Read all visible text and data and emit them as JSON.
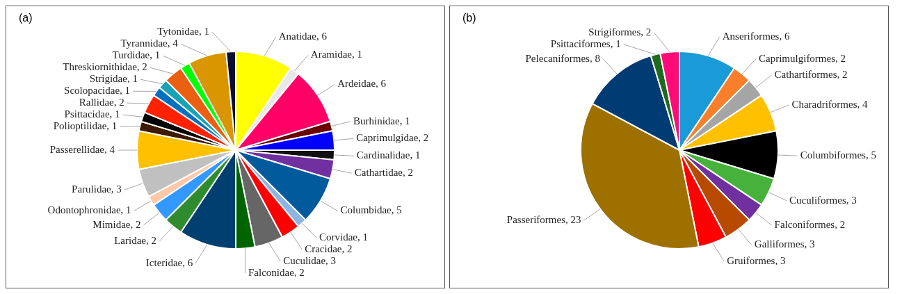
{
  "chart_data": [
    {
      "type": "pie",
      "title": "(a)",
      "categories": [
        "Anatidae, 6",
        "Aramidae, 1",
        "Ardeidae, 6",
        "Burhinidae, 1",
        "Caprimulgidae, 2",
        "Cardinalidae, 1",
        "Cathartidae, 2",
        "Columbidae, 5",
        "Corvidae, 1",
        "Cracidae, 2",
        "Cuculidae, 3",
        "Falconidae, 2",
        "Icteridae, 6",
        "Laridae, 2",
        "Mimidae, 2",
        "Odontophronidae, 1",
        "Parulidae, 3",
        "Passerellidae, 4",
        "Polioptilidae, 1",
        "Psittacidae, 1",
        "Rallidae, 2",
        "Scolopacidae, 1",
        "Strigidae, 1",
        "Threskiornithidae, 2",
        "Turdidae, 1",
        "Tyrannidae, 4",
        "Tytonidae, 1"
      ],
      "values": [
        6,
        1,
        6,
        1,
        2,
        1,
        2,
        5,
        1,
        2,
        3,
        2,
        6,
        2,
        2,
        1,
        3,
        4,
        1,
        1,
        2,
        1,
        1,
        2,
        1,
        4,
        1
      ],
      "colors": [
        "#ffff00",
        "#e8e8e8",
        "#ff0066",
        "#6b0000",
        "#0000ff",
        "#111111",
        "#7030a0",
        "#005a9c",
        "#8eb4e3",
        "#ff0000",
        "#666666",
        "#006400",
        "#003f6f",
        "#2e8b2e",
        "#3399ff",
        "#ffc8a8",
        "#c0c0c0",
        "#ffc000",
        "#3d1a00",
        "#000000",
        "#ff2200",
        "#0070c0",
        "#17a2b8",
        "#e86010",
        "#00ff00",
        "#d99600",
        "#0d0d33"
      ]
    },
    {
      "type": "pie",
      "title": "(b)",
      "categories": [
        "Anseriformes, 6",
        "Caprimulgiformes, 2",
        "Cathartiformes, 2",
        "Charadriformes, 4",
        "Columbiformes, 5",
        "Cuculiformes, 3",
        "Falconiformes, 2",
        "Galliformes, 3",
        "Gruiformes, 3",
        "Passeriformes, 23",
        "Pelecaniformes, 8",
        "Psittaciformes, 1",
        "Strigiformes, 2"
      ],
      "values": [
        6,
        2,
        2,
        4,
        5,
        3,
        2,
        3,
        3,
        23,
        8,
        1,
        2
      ],
      "colors": [
        "#1a9ad6",
        "#f97f2a",
        "#a5a5a5",
        "#ffc000",
        "#000000",
        "#46b23c",
        "#7030a0",
        "#b84a00",
        "#ff0000",
        "#9e7000",
        "#003c73",
        "#1e6b1e",
        "#ff0a78"
      ]
    }
  ]
}
